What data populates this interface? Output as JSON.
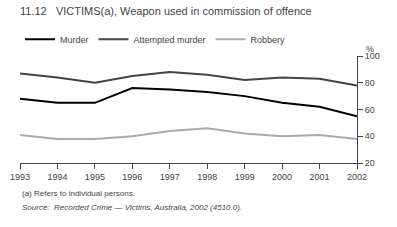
{
  "chart_data": {
    "type": "line",
    "title": "11.12   VICTIMS(a), Weapon used in commission of offence",
    "x": [
      1993,
      1994,
      1995,
      1996,
      1997,
      1998,
      1999,
      2000,
      2001,
      2002
    ],
    "series": [
      {
        "name": "Murder",
        "color": "#000000",
        "values": [
          68,
          65,
          65,
          76,
          75,
          73,
          70,
          65,
          62,
          55
        ]
      },
      {
        "name": "Attempted murder",
        "color": "#444444",
        "values": [
          87,
          84,
          80,
          85,
          88,
          86,
          82,
          84,
          83,
          78
        ]
      },
      {
        "name": "Robbery",
        "color": "#aaaaaa",
        "values": [
          41,
          38,
          38,
          40,
          44,
          46,
          42,
          40,
          41,
          38
        ]
      }
    ],
    "xlim": [
      1993,
      2002
    ],
    "xticks": [
      1993,
      1994,
      1995,
      1996,
      1997,
      1998,
      1999,
      2000,
      2001,
      2002
    ],
    "ylim": [
      20,
      100
    ],
    "yticks": [
      20,
      40,
      60,
      80,
      100
    ],
    "ylabel": "%",
    "annotations": [
      "(a) Refers to individual persons.",
      "Source:  Recorded Crime — Victims, Australia, 2002 (4510.0)."
    ],
    "legend": "top",
    "grid": false
  }
}
